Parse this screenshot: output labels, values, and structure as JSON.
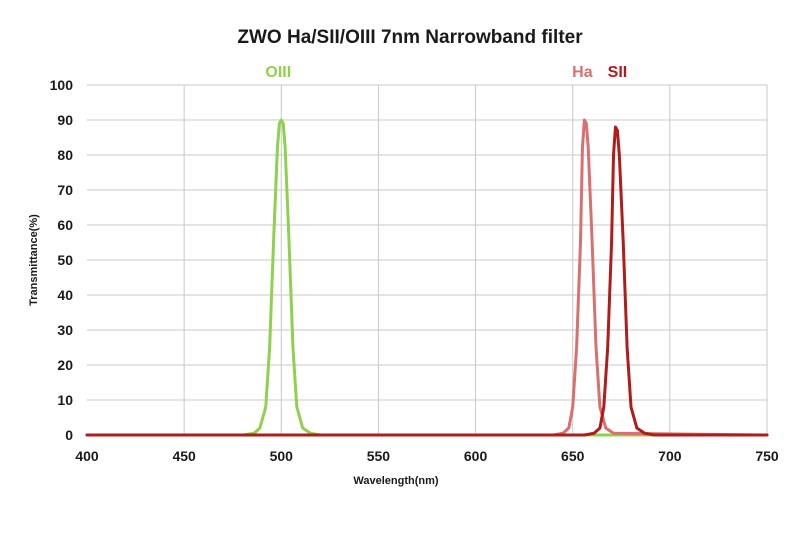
{
  "chart_data": {
    "type": "line",
    "title": "ZWO Ha/SII/OIII 7nm Narrowband filter",
    "xlabel": "Wavelength(nm)",
    "ylabel": "Transmittance(%)",
    "xlim": [
      400,
      750
    ],
    "ylim": [
      0,
      100
    ],
    "x_ticks": [
      400,
      450,
      500,
      550,
      600,
      650,
      700,
      750
    ],
    "y_ticks": [
      0,
      10,
      20,
      30,
      40,
      50,
      60,
      70,
      80,
      90,
      100
    ],
    "grid": true,
    "legend": "labels above peaks",
    "series": [
      {
        "name": "OIII",
        "color": "#8fd14f",
        "x": [
          400,
          480,
          486,
          489,
          492,
          494,
          496,
          498,
          499,
          500,
          501,
          502,
          504,
          506,
          508,
          511,
          515,
          520,
          750
        ],
        "y": [
          0,
          0,
          0.5,
          2,
          8,
          25,
          55,
          82,
          89,
          90,
          89,
          82,
          55,
          25,
          8,
          2,
          0.5,
          0,
          0
        ]
      },
      {
        "name": "Ha",
        "color": "#d97070",
        "x": [
          400,
          640,
          645,
          648,
          650,
          652,
          654,
          655,
          656,
          657,
          658,
          660,
          662,
          664,
          667,
          671,
          750
        ],
        "y": [
          0,
          0,
          0.5,
          2,
          8,
          25,
          55,
          82,
          90,
          89,
          82,
          55,
          25,
          8,
          2,
          0.5,
          0
        ]
      },
      {
        "name": "SII",
        "color": "#b01c1c",
        "x": [
          400,
          656,
          661,
          664,
          666,
          668,
          670,
          671,
          672,
          673,
          674,
          676,
          678,
          680,
          683,
          687,
          692,
          750
        ],
        "y": [
          0,
          0,
          0.5,
          2,
          8,
          25,
          55,
          80,
          88,
          87,
          80,
          55,
          25,
          8,
          2,
          0.5,
          0,
          0
        ]
      }
    ]
  }
}
